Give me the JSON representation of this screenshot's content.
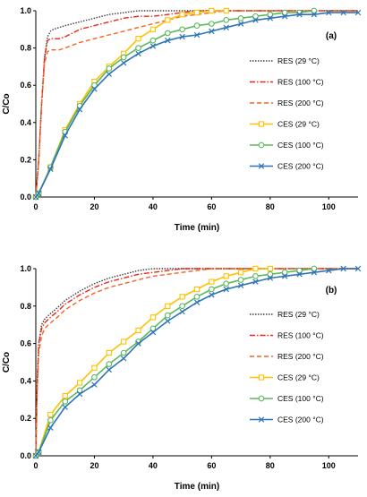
{
  "chart_data": [
    {
      "type": "line",
      "panel_label": "(a)",
      "xlabel": "Time (min)",
      "ylabel": "C/Co",
      "xlim": [
        0,
        110
      ],
      "ylim": [
        0,
        1.0
      ],
      "xticks": [
        0,
        20,
        40,
        60,
        80,
        100
      ],
      "xtick_labels": [
        "0",
        "20",
        "40",
        "60",
        "80",
        "100"
      ],
      "yticks": [
        0,
        0.2,
        0.4,
        0.6,
        0.8,
        1.0
      ],
      "ytick_labels": [
        "0.0",
        "0.2",
        "0.4",
        "0.6",
        "0.8",
        "1.0"
      ],
      "grid": false,
      "legend_position": "right",
      "series": [
        {
          "name": "RES (29 °C)",
          "color": "#404040",
          "dash": "1.5,1.5",
          "marker": "none",
          "x": [
            0,
            1,
            2,
            3,
            4,
            5,
            6,
            8,
            10,
            15,
            20,
            25,
            30,
            35,
            40,
            60,
            80,
            100,
            110
          ],
          "y": [
            0,
            0.2,
            0.5,
            0.75,
            0.86,
            0.89,
            0.9,
            0.91,
            0.92,
            0.94,
            0.96,
            0.98,
            0.99,
            1.0,
            1.0,
            1.0,
            1.0,
            1.0,
            1.0
          ]
        },
        {
          "name": "RES (100 °C)",
          "color": "#e8261c",
          "dash": "6,2,1.5,2",
          "marker": "none",
          "x": [
            0,
            1,
            2,
            3,
            4,
            5,
            6,
            8,
            10,
            15,
            20,
            25,
            30,
            35,
            40,
            45,
            50,
            55,
            60,
            80,
            100,
            110
          ],
          "y": [
            0,
            0.2,
            0.5,
            0.75,
            0.84,
            0.85,
            0.85,
            0.85,
            0.86,
            0.9,
            0.92,
            0.94,
            0.96,
            0.97,
            0.97,
            0.98,
            0.99,
            1.0,
            1.0,
            1.0,
            1.0,
            1.0
          ]
        },
        {
          "name": "RES (200 °C)",
          "color": "#f26522",
          "dash": "5,3",
          "marker": "none",
          "x": [
            0,
            1,
            2,
            3,
            4,
            5,
            6,
            8,
            10,
            15,
            20,
            25,
            30,
            35,
            40,
            45,
            50,
            55,
            60,
            65,
            80,
            100,
            110
          ],
          "y": [
            0,
            0.2,
            0.5,
            0.72,
            0.78,
            0.79,
            0.79,
            0.79,
            0.8,
            0.83,
            0.85,
            0.87,
            0.89,
            0.91,
            0.93,
            0.95,
            0.97,
            0.98,
            0.99,
            1.0,
            1.0,
            1.0,
            1.0
          ]
        },
        {
          "name": "CES (29 °C)",
          "color": "#ffc000",
          "dash": "",
          "marker": "square",
          "x": [
            0,
            1,
            5,
            10,
            15,
            20,
            25,
            30,
            35,
            40,
            45,
            50,
            55,
            60,
            65
          ],
          "y": [
            0,
            0.02,
            0.16,
            0.36,
            0.5,
            0.62,
            0.7,
            0.77,
            0.85,
            0.9,
            0.95,
            0.98,
            0.99,
            1.0,
            1.0
          ]
        },
        {
          "name": "CES (100 °C)",
          "color": "#5cb85c",
          "dash": "",
          "marker": "circle",
          "x": [
            0,
            1,
            5,
            10,
            15,
            20,
            25,
            30,
            35,
            40,
            45,
            50,
            55,
            60,
            65,
            70,
            75,
            80,
            85,
            90,
            95
          ],
          "y": [
            0,
            0.02,
            0.16,
            0.35,
            0.49,
            0.6,
            0.69,
            0.75,
            0.8,
            0.84,
            0.88,
            0.9,
            0.92,
            0.93,
            0.95,
            0.96,
            0.97,
            0.98,
            0.99,
            0.99,
            1.0
          ]
        },
        {
          "name": "CES (200 °C)",
          "color": "#2e75b6",
          "dash": "",
          "marker": "x",
          "x": [
            0,
            1,
            5,
            10,
            15,
            20,
            25,
            30,
            35,
            40,
            45,
            50,
            55,
            60,
            65,
            70,
            75,
            80,
            85,
            90,
            95,
            100,
            105,
            110
          ],
          "y": [
            0,
            0.02,
            0.15,
            0.33,
            0.47,
            0.58,
            0.66,
            0.72,
            0.77,
            0.81,
            0.84,
            0.86,
            0.87,
            0.89,
            0.91,
            0.93,
            0.95,
            0.96,
            0.97,
            0.98,
            0.98,
            0.99,
            0.99,
            0.99
          ]
        }
      ]
    },
    {
      "type": "line",
      "panel_label": "(b)",
      "xlabel": "Time (min)",
      "ylabel": "C/Co",
      "xlim": [
        0,
        110
      ],
      "ylim": [
        0,
        1.0
      ],
      "xticks": [
        0,
        20,
        40,
        60,
        80,
        100
      ],
      "xtick_labels": [
        "0",
        "20",
        "40",
        "60",
        "80",
        "100"
      ],
      "yticks": [
        0,
        0.2,
        0.4,
        0.6,
        0.8,
        1.0
      ],
      "ytick_labels": [
        "0.0",
        "0.2",
        "0.4",
        "0.6",
        "0.8",
        "1.0"
      ],
      "grid": false,
      "legend_position": "right",
      "series": [
        {
          "name": "RES (29 °C)",
          "color": "#404040",
          "dash": "1.5,1.5",
          "marker": "none",
          "x": [
            0,
            0.5,
            1,
            2,
            3,
            5,
            8,
            10,
            15,
            20,
            25,
            30,
            35,
            40,
            50,
            60,
            80,
            100,
            110
          ],
          "y": [
            0,
            0.4,
            0.6,
            0.7,
            0.73,
            0.76,
            0.8,
            0.83,
            0.88,
            0.92,
            0.95,
            0.97,
            0.99,
            1.0,
            1.0,
            1.0,
            1.0,
            1.0,
            1.0
          ]
        },
        {
          "name": "RES (100 °C)",
          "color": "#e8261c",
          "dash": "6,2,1.5,2",
          "marker": "none",
          "x": [
            0,
            0.5,
            1,
            2,
            3,
            5,
            8,
            10,
            15,
            20,
            25,
            30,
            35,
            40,
            45,
            50,
            55,
            60,
            80,
            100,
            110
          ],
          "y": [
            0,
            0.4,
            0.6,
            0.68,
            0.71,
            0.74,
            0.78,
            0.81,
            0.86,
            0.9,
            0.93,
            0.95,
            0.97,
            0.98,
            0.99,
            1.0,
            1.0,
            1.0,
            1.0,
            1.0,
            1.0
          ]
        },
        {
          "name": "RES (200 °C)",
          "color": "#f26522",
          "dash": "5,3",
          "marker": "none",
          "x": [
            0,
            0.5,
            1,
            2,
            3,
            5,
            8,
            10,
            15,
            20,
            25,
            30,
            35,
            40,
            45,
            50,
            55,
            60,
            65,
            80,
            100,
            110
          ],
          "y": [
            0,
            0.35,
            0.55,
            0.64,
            0.68,
            0.71,
            0.75,
            0.78,
            0.83,
            0.87,
            0.9,
            0.92,
            0.94,
            0.96,
            0.97,
            0.98,
            0.99,
            1.0,
            1.0,
            1.0,
            1.0,
            1.0
          ]
        },
        {
          "name": "CES (29 °C)",
          "color": "#ffc000",
          "dash": "",
          "marker": "square",
          "x": [
            0,
            1,
            5,
            10,
            15,
            20,
            25,
            30,
            35,
            40,
            45,
            50,
            55,
            60,
            65,
            70,
            75,
            80
          ],
          "y": [
            0,
            0.02,
            0.22,
            0.32,
            0.39,
            0.47,
            0.55,
            0.61,
            0.67,
            0.74,
            0.8,
            0.85,
            0.89,
            0.93,
            0.96,
            0.98,
            1.0,
            1.0
          ]
        },
        {
          "name": "CES (100 °C)",
          "color": "#5cb85c",
          "dash": "",
          "marker": "circle",
          "x": [
            0,
            1,
            5,
            10,
            15,
            20,
            25,
            30,
            35,
            40,
            45,
            50,
            55,
            60,
            65,
            70,
            75,
            80,
            85,
            90,
            95
          ],
          "y": [
            0,
            0.02,
            0.19,
            0.29,
            0.35,
            0.42,
            0.49,
            0.55,
            0.61,
            0.68,
            0.75,
            0.8,
            0.85,
            0.89,
            0.92,
            0.94,
            0.96,
            0.97,
            0.98,
            0.99,
            1.0
          ]
        },
        {
          "name": "CES (200 °C)",
          "color": "#2e75b6",
          "dash": "",
          "marker": "x",
          "x": [
            0,
            1,
            5,
            10,
            15,
            20,
            25,
            30,
            35,
            40,
            45,
            50,
            55,
            60,
            65,
            70,
            75,
            80,
            85,
            90,
            95,
            100,
            105,
            110
          ],
          "y": [
            0,
            0.02,
            0.15,
            0.26,
            0.33,
            0.38,
            0.46,
            0.52,
            0.6,
            0.66,
            0.72,
            0.77,
            0.82,
            0.86,
            0.89,
            0.91,
            0.93,
            0.95,
            0.96,
            0.97,
            0.98,
            0.99,
            1.0,
            1.0
          ]
        }
      ]
    }
  ]
}
